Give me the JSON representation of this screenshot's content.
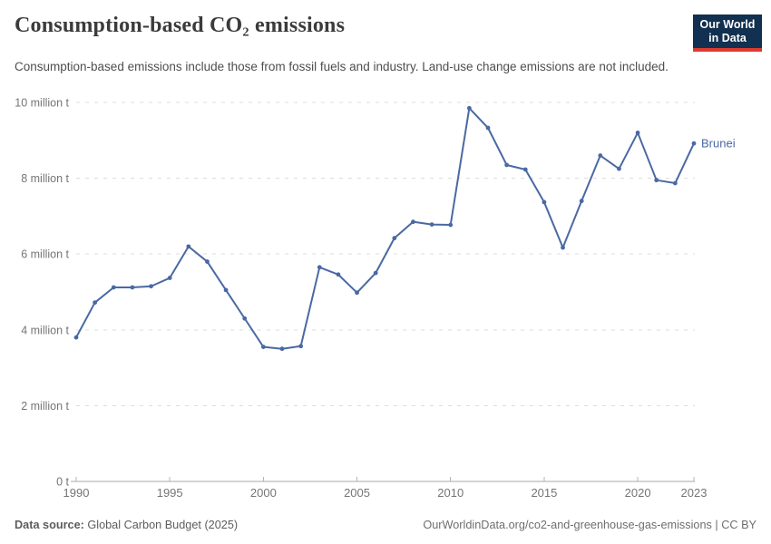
{
  "header": {
    "title": "Consumption-based CO₂ emissions",
    "subtitle": "Consumption-based emissions include those from fossil fuels and industry. Land-use change emissions are not included.",
    "logo_line1": "Our World",
    "logo_line2": "in Data"
  },
  "footer": {
    "source_label": "Data source:",
    "source_text": " Global Carbon Budget (2025)",
    "credit": "OurWorldinData.org/co2-and-greenhouse-gas-emissions | CC BY"
  },
  "colors": {
    "line": "#4a69a2",
    "logo_bg": "#12304f",
    "logo_red": "#dc3b2f",
    "grid": "#dddddd",
    "axis": "#a8a8a8",
    "tick": "#b5b5b5",
    "tick_label": "#757575"
  },
  "chart_data": {
    "type": "line",
    "title": "Consumption-based CO₂ emissions",
    "ylabel": "",
    "xlabel": "",
    "unit": "million tonnes",
    "xlim": [
      1990,
      2023
    ],
    "ylim": [
      0,
      10
    ],
    "grid": "horizontal-dashed",
    "legend": "end-of-line-label",
    "x_ticks": [
      1990,
      1995,
      2000,
      2005,
      2010,
      2015,
      2020,
      2023
    ],
    "y_ticks": [
      {
        "value": 0,
        "label": "0 t"
      },
      {
        "value": 2,
        "label": "2 million t"
      },
      {
        "value": 4,
        "label": "4 million t"
      },
      {
        "value": 6,
        "label": "6 million t"
      },
      {
        "value": 8,
        "label": "8 million t"
      },
      {
        "value": 10,
        "label": "10 million t"
      }
    ],
    "series": [
      {
        "name": "Brunei",
        "color": "#4a69a2",
        "x": [
          1990,
          1991,
          1992,
          1993,
          1994,
          1995,
          1996,
          1997,
          1998,
          1999,
          2000,
          2001,
          2002,
          2003,
          2004,
          2005,
          2006,
          2007,
          2008,
          2009,
          2010,
          2011,
          2012,
          2013,
          2014,
          2015,
          2016,
          2017,
          2018,
          2019,
          2020,
          2021,
          2022,
          2023
        ],
        "values": [
          3.8,
          4.72,
          5.12,
          5.12,
          5.15,
          5.37,
          6.2,
          5.8,
          5.05,
          4.3,
          3.55,
          3.5,
          3.57,
          5.65,
          5.46,
          4.98,
          5.5,
          6.42,
          6.85,
          6.78,
          6.77,
          9.85,
          9.33,
          8.35,
          8.23,
          7.37,
          6.17,
          7.4,
          8.6,
          8.25,
          9.2,
          7.95,
          7.87,
          8.92
        ]
      }
    ]
  }
}
